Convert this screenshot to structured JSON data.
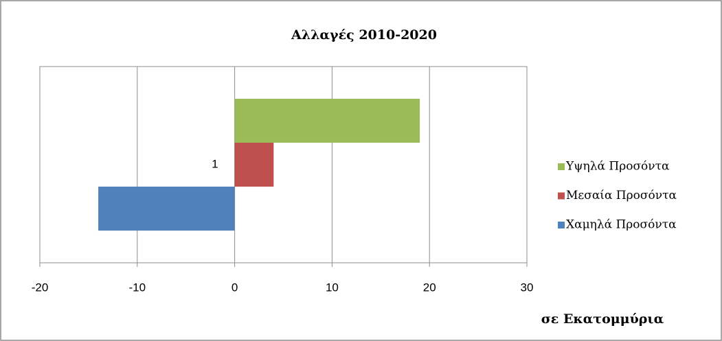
{
  "chart_data": {
    "type": "bar",
    "orientation": "horizontal",
    "title": "Αλλαγές 2010-2020",
    "x_label": "σε Εκατομμύρια",
    "categories": [
      "1"
    ],
    "series": [
      {
        "name": "Χαμηλά Προσόντα",
        "color": "#4f81bd",
        "values": [
          -14
        ]
      },
      {
        "name": "Μεσαία Προσόντα",
        "color": "#c0504d",
        "values": [
          4
        ]
      },
      {
        "name": "Υψηλά Προσόντα",
        "color": "#9bbb59",
        "values": [
          19
        ]
      }
    ],
    "xlim": [
      -20,
      30
    ],
    "xticks": [
      -20,
      -10,
      0,
      10,
      20,
      30
    ],
    "grid": true,
    "legend": "right"
  }
}
